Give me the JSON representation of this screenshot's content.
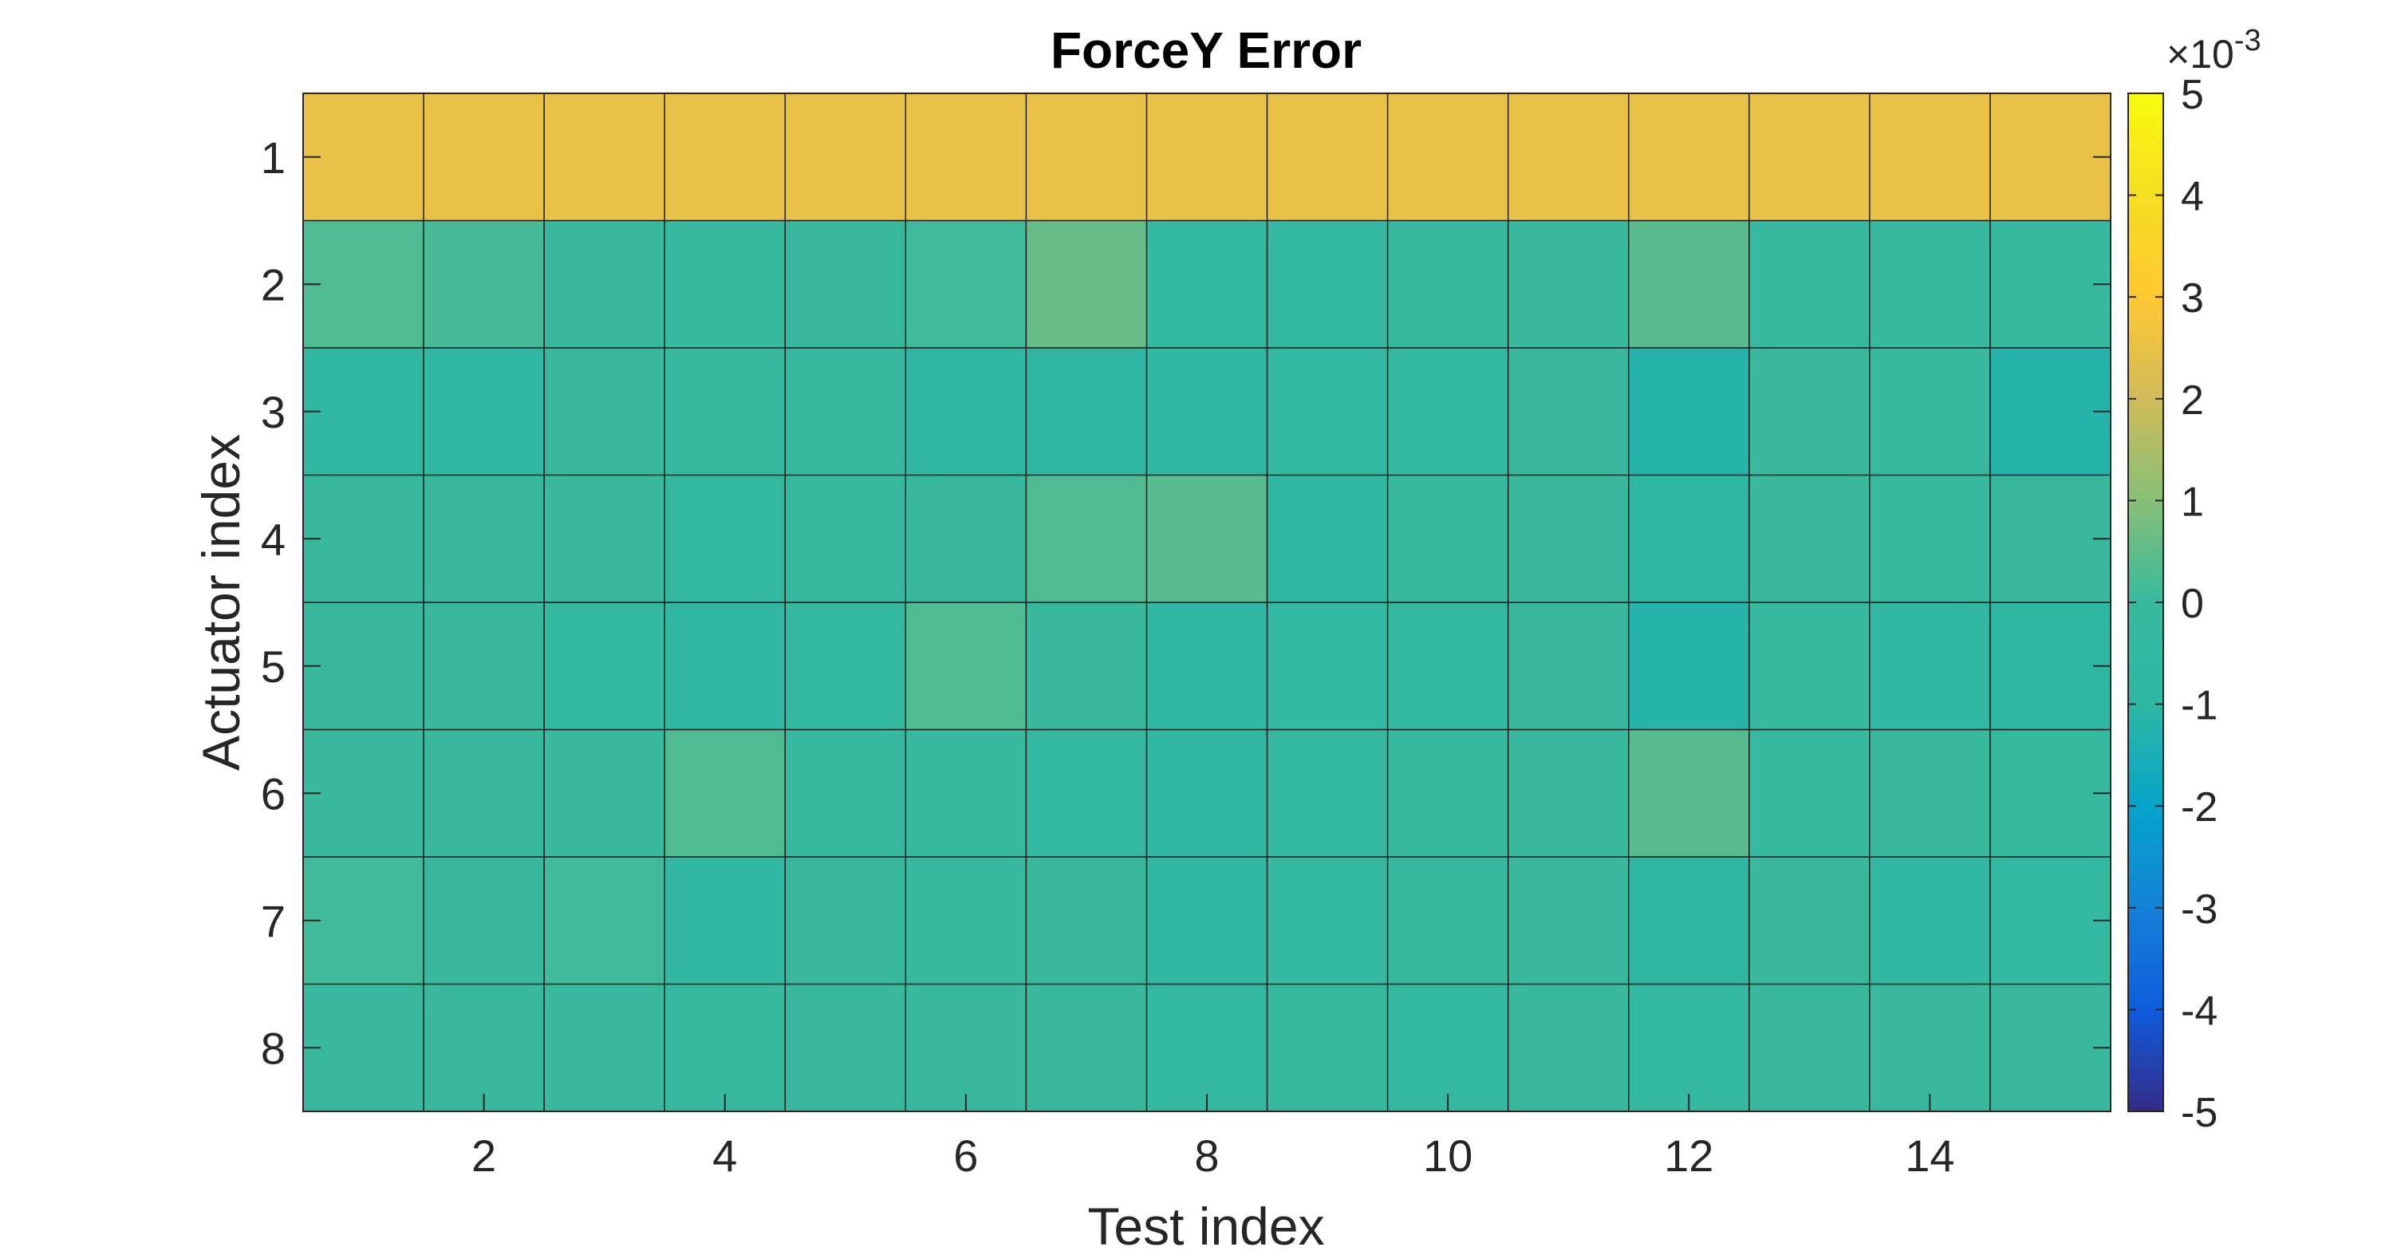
{
  "chart_data": {
    "type": "heatmap",
    "title": "ForceY Error",
    "xlabel": "Test index",
    "ylabel": "Actuator index",
    "x": [
      1,
      2,
      3,
      4,
      5,
      6,
      7,
      8,
      9,
      10,
      11,
      12,
      13,
      14,
      15
    ],
    "y": [
      1,
      2,
      3,
      4,
      5,
      6,
      7,
      8
    ],
    "x_ticks": [
      "2",
      "4",
      "6",
      "8",
      "10",
      "12",
      "14"
    ],
    "y_ticks": [
      "1",
      "2",
      "3",
      "4",
      "5",
      "6",
      "7",
      "8"
    ],
    "colormap": "parula",
    "clim": [
      -0.005,
      0.005
    ],
    "colorbar": {
      "ticks": [
        "5",
        "4",
        "3",
        "2",
        "1",
        "0",
        "-1",
        "-2",
        "-3",
        "-4",
        "-5"
      ],
      "exponent_label": "×10",
      "exponent": "-3"
    },
    "grid_lines": true,
    "units_scale": 0.001,
    "values_e3": [
      [
        2.5,
        2.5,
        2.5,
        2.5,
        2.5,
        2.5,
        2.5,
        2.5,
        2.5,
        2.5,
        2.5,
        2.5,
        2.5,
        2.5,
        2.5
      ],
      [
        0.3,
        0.2,
        0.0,
        -0.1,
        0.0,
        0.1,
        0.6,
        -0.3,
        -0.4,
        -0.2,
        0.0,
        0.4,
        -0.1,
        -0.1,
        -0.2
      ],
      [
        -0.6,
        -0.7,
        0.0,
        -0.2,
        -0.1,
        -0.6,
        -0.8,
        -0.7,
        -0.5,
        -0.3,
        0.0,
        -1.2,
        0.0,
        -0.1,
        -1.2
      ],
      [
        0.0,
        0.0,
        0.0,
        -0.3,
        -0.1,
        0.0,
        0.3,
        0.4,
        -0.7,
        -0.2,
        0.0,
        -1.0,
        0.0,
        -0.1,
        0.0
      ],
      [
        0.0,
        0.0,
        -0.3,
        -0.6,
        -0.4,
        0.3,
        0.0,
        -0.7,
        -0.5,
        -0.3,
        0.0,
        -1.2,
        -0.1,
        -0.6,
        -0.9
      ],
      [
        0.0,
        0.0,
        0.0,
        0.3,
        -0.1,
        -0.1,
        -0.4,
        -0.6,
        -0.3,
        -0.1,
        0.0,
        0.4,
        -0.1,
        0.0,
        -0.1
      ],
      [
        0.1,
        0.0,
        0.1,
        -0.6,
        0.0,
        -0.1,
        0.0,
        -0.6,
        -0.4,
        -0.1,
        0.0,
        -0.8,
        0.0,
        -0.6,
        -0.5
      ],
      [
        0.0,
        0.0,
        0.0,
        -0.2,
        0.0,
        0.0,
        0.0,
        -0.3,
        -0.2,
        -0.4,
        0.0,
        -0.4,
        0.0,
        0.0,
        0.0
      ]
    ]
  }
}
